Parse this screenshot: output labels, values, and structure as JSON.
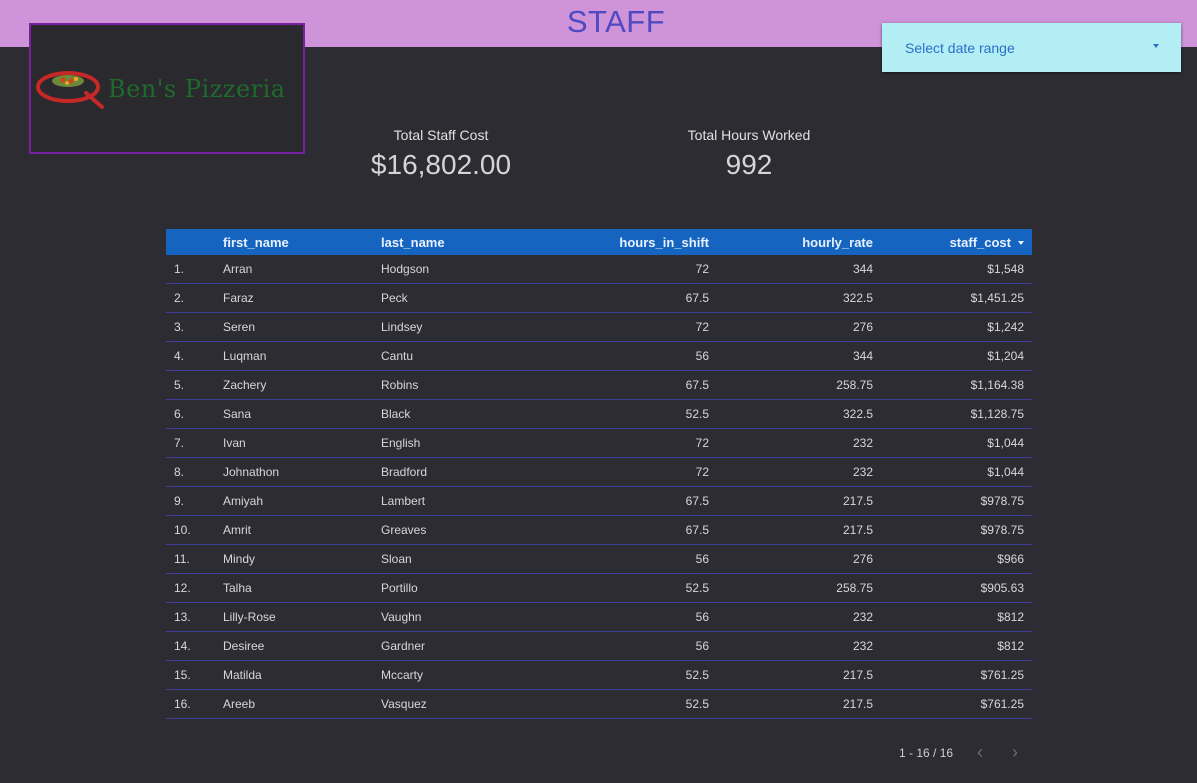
{
  "header": {
    "title": "STAFF"
  },
  "logo": {
    "name": "Ben's Pizzeria"
  },
  "date_filter": {
    "label": "Select date range"
  },
  "kpis": {
    "total_staff_cost": {
      "label": "Total Staff Cost",
      "value": "$16,802.00"
    },
    "total_hours_worked": {
      "label": "Total Hours Worked",
      "value": "992"
    }
  },
  "table": {
    "columns": [
      "",
      "first_name",
      "last_name",
      "hours_in_shift",
      "hourly_rate",
      "staff_cost"
    ],
    "rows": [
      [
        "1.",
        "Arran",
        "Hodgson",
        "72",
        "344",
        "$1,548"
      ],
      [
        "2.",
        "Faraz",
        "Peck",
        "67.5",
        "322.5",
        "$1,451.25"
      ],
      [
        "3.",
        "Seren",
        "Lindsey",
        "72",
        "276",
        "$1,242"
      ],
      [
        "4.",
        "Luqman",
        "Cantu",
        "56",
        "344",
        "$1,204"
      ],
      [
        "5.",
        "Zachery",
        "Robins",
        "67.5",
        "258.75",
        "$1,164.38"
      ],
      [
        "6.",
        "Sana",
        "Black",
        "52.5",
        "322.5",
        "$1,128.75"
      ],
      [
        "7.",
        "Ivan",
        "English",
        "72",
        "232",
        "$1,044"
      ],
      [
        "8.",
        "Johnathon",
        "Bradford",
        "72",
        "232",
        "$1,044"
      ],
      [
        "9.",
        "Amiyah",
        "Lambert",
        "67.5",
        "217.5",
        "$978.75"
      ],
      [
        "10.",
        "Amrit",
        "Greaves",
        "67.5",
        "217.5",
        "$978.75"
      ],
      [
        "11.",
        "Mindy",
        "Sloan",
        "56",
        "276",
        "$966"
      ],
      [
        "12.",
        "Talha",
        "Portillo",
        "52.5",
        "258.75",
        "$905.63"
      ],
      [
        "13.",
        "Lilly-Rose",
        "Vaughn",
        "56",
        "232",
        "$812"
      ],
      [
        "14.",
        "Desiree",
        "Gardner",
        "56",
        "232",
        "$812"
      ],
      [
        "15.",
        "Matilda",
        "Mccarty",
        "52.5",
        "217.5",
        "$761.25"
      ],
      [
        "16.",
        "Areeb",
        "Vasquez",
        "52.5",
        "217.5",
        "$761.25"
      ]
    ]
  },
  "pagination": {
    "label": "1 - 16 / 16",
    "prev_icon": "chevron-left-icon",
    "next_icon": "chevron-right-icon"
  },
  "colors": {
    "header_bg": "#ce93d8",
    "title": "#4f49c2",
    "background": "#2d2c33",
    "table_header": "#1565c0",
    "date_select_bg": "#b3eef5"
  }
}
